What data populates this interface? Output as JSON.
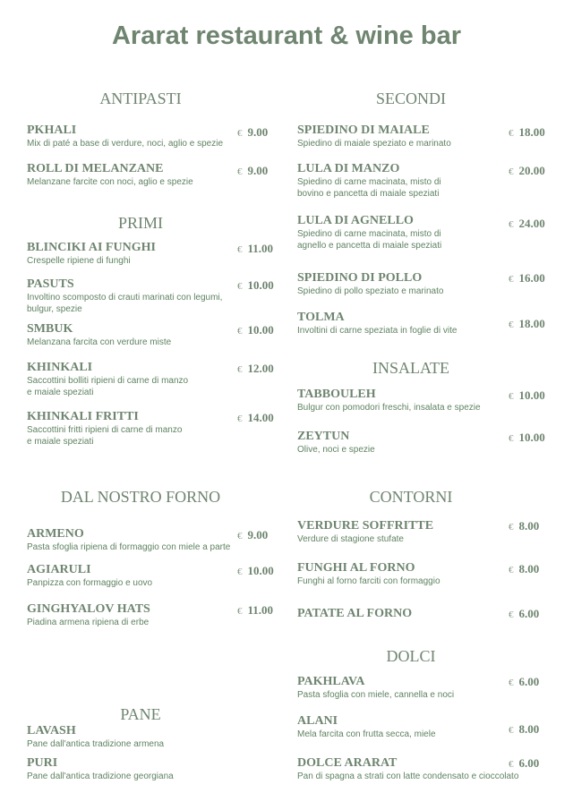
{
  "title": "Ararat restaurant & wine bar",
  "currency": "€",
  "colors": {
    "heading": "#6f8570",
    "description": "#5f8261"
  },
  "sections": [
    {
      "title": "ANTIPASTI",
      "items": [
        {
          "name": "PKHALI",
          "desc": [
            "Mix di paté a base di verdure, noci, aglio e spezie"
          ],
          "price": "9.00"
        },
        {
          "name": "ROLL DI MELANZANE",
          "desc": [
            "Melanzane farcite con noci, aglio e spezie"
          ],
          "price": "9.00"
        }
      ]
    },
    {
      "title": "PRIMI",
      "items": [
        {
          "name": "BLINCIKI AI FUNGHI",
          "desc": [
            "Crespelle ripiene di funghi"
          ],
          "price": "11.00"
        },
        {
          "name": "PASUTS",
          "desc": [
            "Involtino scomposto di crauti marinati con legumi,",
            "bulgur, spezie"
          ],
          "price": "10.00"
        },
        {
          "name": "SMBUK",
          "desc": [
            "Melanzana farcita con verdure miste"
          ],
          "price": "10.00"
        },
        {
          "name": "KHINKALI",
          "desc": [
            "Saccottini bolliti ripieni di carne di manzo",
            "e maiale speziati"
          ],
          "price": "12.00"
        },
        {
          "name": "KHINKALI FRITTI",
          "desc": [
            "Saccottini fritti ripieni di carne di manzo",
            "e maiale speziati"
          ],
          "price": "14.00"
        }
      ]
    },
    {
      "title": "DAL NOSTRO FORNO",
      "items": [
        {
          "name": "ARMENO",
          "desc": [
            "Pasta sfoglia ripiena di formaggio con miele a parte"
          ],
          "price": "9.00"
        },
        {
          "name": "AGIARULI",
          "desc": [
            "Panpizza con formaggio e uovo"
          ],
          "price": "10.00"
        },
        {
          "name": "GINGHYALOV HATS",
          "desc": [
            "Piadina armena ripiena di erbe"
          ],
          "price": "11.00"
        }
      ]
    },
    {
      "title": "PANE",
      "items": [
        {
          "name": "LAVASH",
          "desc": [
            "Pane dall'antica tradizione armena"
          ]
        },
        {
          "name": "PURI",
          "desc": [
            "Pane dall'antica tradizione georgiana"
          ]
        }
      ]
    },
    {
      "title": "SECONDI",
      "items": [
        {
          "name": "SPIEDINO DI MAIALE",
          "desc": [
            "Spiedino di maiale speziato e marinato"
          ],
          "price": "18.00"
        },
        {
          "name": "LULA DI MANZO",
          "desc": [
            "Spiedino di carne macinata, misto di",
            "bovino e pancetta di maiale speziati"
          ],
          "price": "20.00"
        },
        {
          "name": "LULA DI AGNELLO",
          "desc": [
            "Spiedino di carne macinata, misto di",
            "agnello e pancetta di maiale speziati"
          ],
          "price": "24.00"
        },
        {
          "name": "SPIEDINO DI POLLO",
          "desc": [
            "Spiedino di pollo speziato e marinato"
          ],
          "price": "16.00"
        },
        {
          "name": "TOLMA",
          "desc": [
            "Involtini di carne speziata in foglie di vite"
          ],
          "price": "18.00"
        }
      ]
    },
    {
      "title": "INSALATE",
      "items": [
        {
          "name": "TABBOULEH",
          "desc": [
            "Bulgur con pomodori freschi, insalata e spezie"
          ],
          "price": "10.00"
        },
        {
          "name": "ZEYTUN",
          "desc": [
            "Olive, noci e spezie"
          ],
          "price": "10.00"
        }
      ]
    },
    {
      "title": "CONTORNI",
      "items": [
        {
          "name": "VERDURE SOFFRITTE",
          "desc": [
            "Verdure di stagione stufate"
          ],
          "price": "8.00"
        },
        {
          "name": "FUNGHI AL FORNO",
          "desc": [
            "Funghi al forno farciti con formaggio"
          ],
          "price": "8.00"
        },
        {
          "name": "PATATE AL FORNO",
          "desc": [],
          "price": "6.00"
        }
      ]
    },
    {
      "title": "DOLCI",
      "items": [
        {
          "name": "PAKHLAVA",
          "desc": [
            "Pasta sfoglia con miele, cannella e noci"
          ],
          "price": "6.00"
        },
        {
          "name": "ALANI",
          "desc": [
            "Mela farcita con frutta secca, miele"
          ],
          "price": "8.00"
        },
        {
          "name": "DOLCE ARARAT",
          "desc": [
            "Pan di spagna a strati con latte condensato e cioccolato"
          ],
          "price": "6.00"
        }
      ]
    }
  ]
}
